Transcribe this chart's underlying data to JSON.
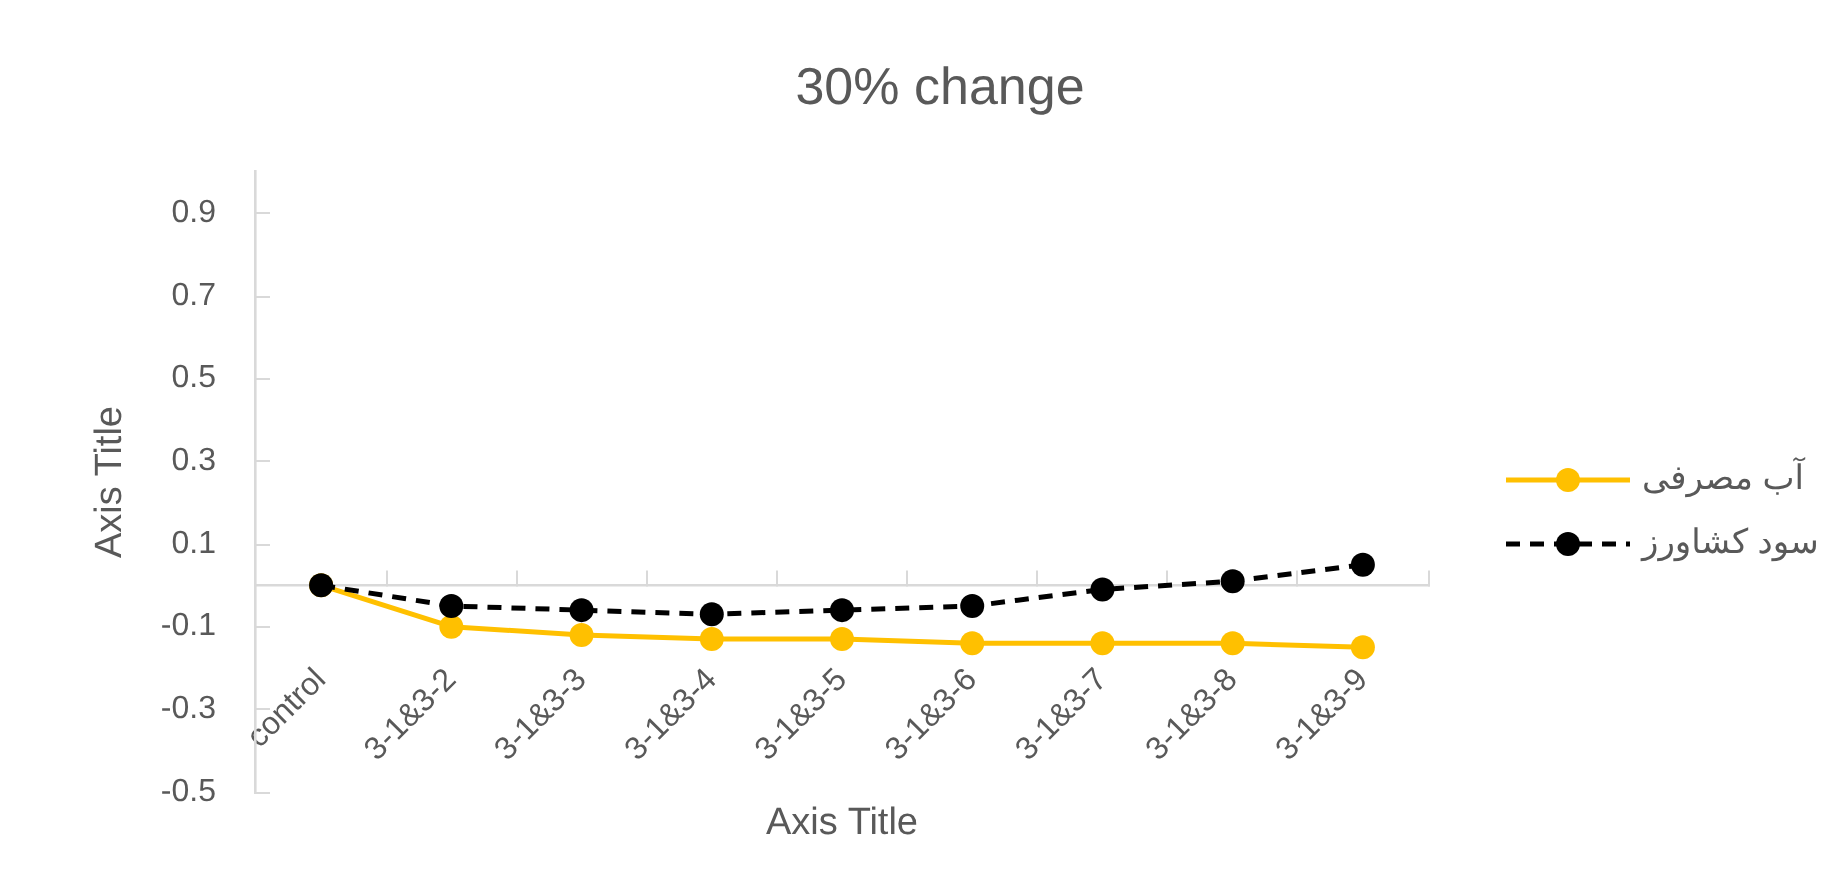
{
  "chart_data": {
    "type": "line",
    "title": "30% change",
    "xlabel": "Axis Title",
    "ylabel": "Axis Title",
    "categories": [
      "control",
      "3-1&3-2",
      "3-1&3-3",
      "3-1&3-4",
      "3-1&3-5",
      "3-1&3-6",
      "3-1&3-7",
      "3-1&3-8",
      "3-1&3-9"
    ],
    "series": [
      {
        "name": "آب مصرفی",
        "color": "#ffc000",
        "line_style": "solid",
        "values": [
          0,
          -0.1,
          -0.12,
          -0.13,
          -0.13,
          -0.14,
          -0.14,
          -0.14,
          -0.15
        ]
      },
      {
        "name": "سود کشاورز",
        "color": "#000000",
        "line_style": "dashed",
        "values": [
          0,
          -0.05,
          -0.06,
          -0.07,
          -0.06,
          -0.05,
          -0.01,
          0.01,
          0.05
        ]
      }
    ],
    "ylim": [
      -0.5,
      1.0
    ],
    "yticks": [
      -0.5,
      -0.3,
      -0.1,
      0.1,
      0.3,
      0.5,
      0.7,
      0.9
    ],
    "grid": false,
    "legend": "right",
    "marker": "circle"
  }
}
